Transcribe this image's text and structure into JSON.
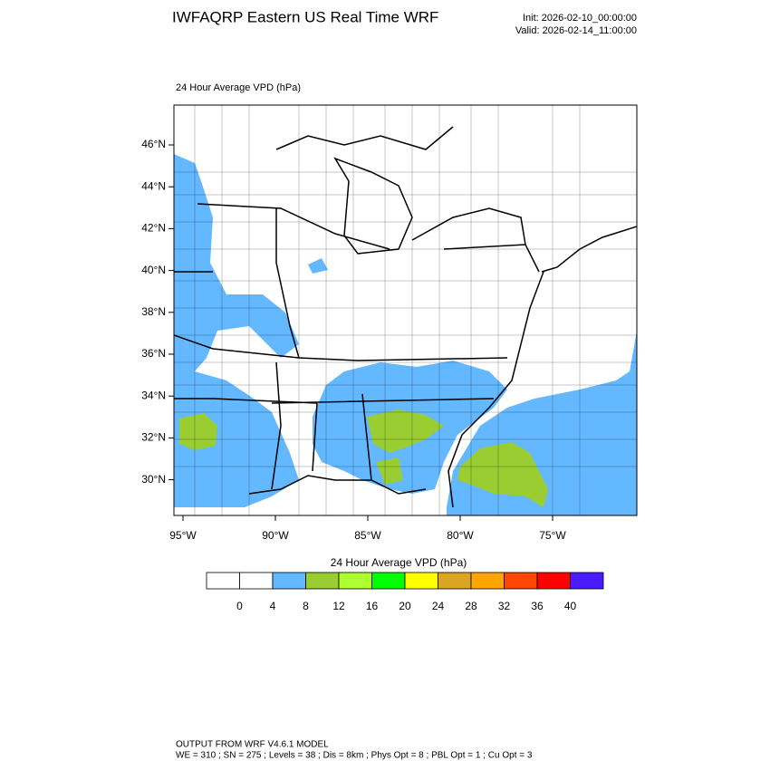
{
  "header": {
    "title": "IWFAQRP Eastern US Real Time WRF",
    "init": "Init: 2026-02-10_00:00:00",
    "valid": "Valid: 2026-02-14_11:00:00"
  },
  "map": {
    "field_label": "24 Hour Average VPD   (hPa)",
    "lat_labels": [
      "46°N",
      "44°N",
      "42°N",
      "40°N",
      "38°N",
      "36°N",
      "34°N",
      "32°N",
      "30°N"
    ],
    "lon_labels": [
      "95°W",
      "90°W",
      "85°W",
      "80°W",
      "75°W"
    ]
  },
  "colorbar": {
    "title": "24 Hour Average VPD  (hPa)",
    "labels": [
      "0",
      "4",
      "8",
      "12",
      "16",
      "20",
      "24",
      "28",
      "32",
      "36",
      "40"
    ],
    "colors": [
      "#ffffff",
      "#ffffff",
      "#63b8ff",
      "#9acd32",
      "#adff2f",
      "#00ff00",
      "#ffff00",
      "#daa520",
      "#ffa500",
      "#ff4500",
      "#ff0000",
      "#4b1bff"
    ]
  },
  "footer": {
    "line1": "OUTPUT FROM WRF V4.6.1 MODEL",
    "line2": "WE = 310 ; SN = 275 ; Levels = 38 ; Dis = 8km ; Phys Opt = 8 ; PBL Opt = 1 ; Cu Opt = 3"
  }
}
